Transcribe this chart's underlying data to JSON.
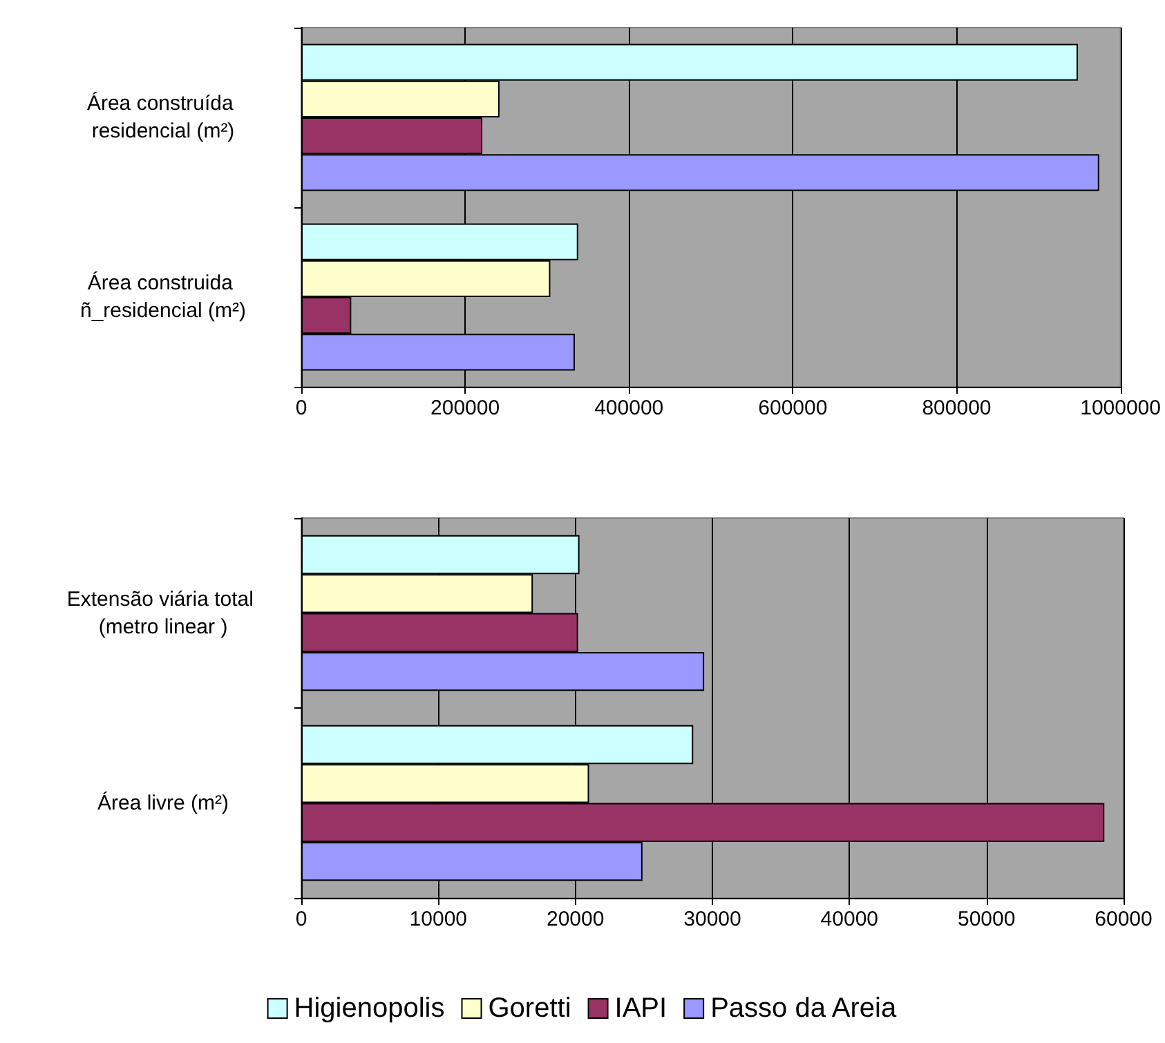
{
  "chart_data": [
    {
      "type": "bar",
      "orientation": "horizontal",
      "categories": [
        "Área construída residencial (m²)",
        "Área construida ñ_residencial (m²)"
      ],
      "series": [
        {
          "color": "#ccffff",
          "values": [
            948000,
            338000
          ]
        },
        {
          "color": "#ffffcc",
          "values": [
            242000,
            304000
          ]
        },
        {
          "color": "#993366",
          "values": [
            221000,
            61000
          ]
        },
        {
          "color": "#9999ff",
          "values": [
            974000,
            334000
          ]
        }
      ],
      "xlim": [
        0,
        1000000
      ],
      "xticks": [
        0,
        200000,
        400000,
        600000,
        800000,
        1000000
      ],
      "grid": "x",
      "legend": false
    },
    {
      "type": "bar",
      "orientation": "horizontal",
      "categories": [
        "Extensão viária total (metro linear )",
        "Área livre (m²)"
      ],
      "series": [
        {
          "name": "Higienopolis",
          "color": "#ccffff",
          "values": [
            20300,
            28600
          ]
        },
        {
          "name": "Goretti",
          "color": "#ffffcc",
          "values": [
            16900,
            21000
          ]
        },
        {
          "name": "IAPI",
          "color": "#993366",
          "values": [
            20200,
            58600
          ]
        },
        {
          "name": "Passo da Areia",
          "color": "#9999ff",
          "values": [
            29400,
            24900
          ]
        }
      ],
      "xlim": [
        0,
        60000
      ],
      "xticks": [
        0,
        10000,
        20000,
        30000,
        40000,
        50000,
        60000
      ],
      "grid": "x",
      "legend": "bottom"
    }
  ]
}
